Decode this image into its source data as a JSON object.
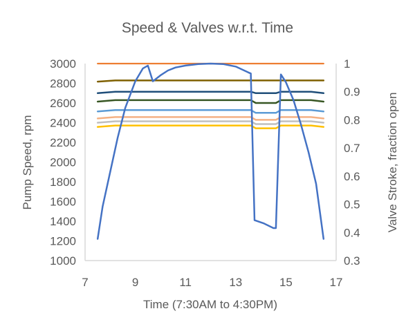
{
  "chart_data": {
    "type": "line",
    "title": "Speed & Valves w.r.t. Time",
    "xlabel": "Time (7:30AM to 4:30PM)",
    "ylabel": "Pump Speed, rpm",
    "y2label": "Valve Stroke, fraction open",
    "xlim": [
      7,
      17
    ],
    "ylim": [
      1000,
      3000
    ],
    "y2lim": [
      0.3,
      1
    ],
    "x_ticks": [
      "7",
      "9",
      "11",
      "13",
      "15",
      "17"
    ],
    "y_ticks": [
      "1000",
      "1200",
      "1400",
      "1600",
      "1800",
      "2000",
      "2200",
      "2400",
      "2600",
      "2800",
      "3000"
    ],
    "y2_ticks": [
      "0.3",
      "0.4",
      "0.5",
      "0.6",
      "0.7",
      "0.8",
      "0.9",
      "1"
    ],
    "grid": false,
    "legend": "none",
    "series": [
      {
        "axis": "left",
        "color": "#4472c4",
        "width": 2.5,
        "points": [
          [
            7.5,
            1220
          ],
          [
            7.7,
            1550
          ],
          [
            8.0,
            1900
          ],
          [
            8.3,
            2250
          ],
          [
            8.6,
            2550
          ],
          [
            9.0,
            2820
          ],
          [
            9.3,
            2950
          ],
          [
            9.5,
            2980
          ],
          [
            9.7,
            2820
          ],
          [
            10.0,
            2880
          ],
          [
            10.3,
            2930
          ],
          [
            10.6,
            2960
          ],
          [
            11.0,
            2980
          ],
          [
            11.5,
            2995
          ],
          [
            12.0,
            3000
          ],
          [
            12.5,
            2995
          ],
          [
            13.0,
            2970
          ],
          [
            13.5,
            2910
          ],
          [
            13.6,
            2900
          ],
          [
            13.75,
            1410
          ],
          [
            14.1,
            1380
          ],
          [
            14.5,
            1330
          ],
          [
            14.6,
            1330
          ],
          [
            14.8,
            2890
          ],
          [
            15.0,
            2810
          ],
          [
            15.3,
            2630
          ],
          [
            15.6,
            2380
          ],
          [
            15.9,
            2100
          ],
          [
            16.2,
            1780
          ],
          [
            16.5,
            1220
          ]
        ]
      },
      {
        "axis": "right",
        "color": "#ed7d31",
        "width": 2.2,
        "points": [
          [
            7.5,
            1.0
          ],
          [
            16.5,
            1.0
          ]
        ]
      },
      {
        "axis": "right",
        "color": "#7f6000",
        "width": 2.5,
        "points": [
          [
            7.5,
            0.936
          ],
          [
            8.2,
            0.94
          ],
          [
            13.6,
            0.94
          ],
          [
            16.5,
            0.94
          ]
        ]
      },
      {
        "axis": "right",
        "color": "#1f4e79",
        "width": 2.5,
        "points": [
          [
            7.5,
            0.895
          ],
          [
            8.2,
            0.9
          ],
          [
            13.6,
            0.9
          ],
          [
            13.8,
            0.895
          ],
          [
            14.6,
            0.895
          ],
          [
            14.8,
            0.9
          ],
          [
            16.0,
            0.9
          ],
          [
            16.5,
            0.895
          ]
        ]
      },
      {
        "axis": "right",
        "color": "#375623",
        "width": 2.5,
        "points": [
          [
            7.5,
            0.865
          ],
          [
            8.2,
            0.87
          ],
          [
            13.6,
            0.87
          ],
          [
            13.8,
            0.86
          ],
          [
            14.6,
            0.86
          ],
          [
            14.8,
            0.87
          ],
          [
            16.0,
            0.87
          ],
          [
            16.5,
            0.865
          ]
        ]
      },
      {
        "axis": "right",
        "color": "#5b9bd5",
        "width": 2.5,
        "points": [
          [
            7.5,
            0.83
          ],
          [
            8.2,
            0.835
          ],
          [
            13.6,
            0.835
          ],
          [
            13.8,
            0.825
          ],
          [
            14.6,
            0.825
          ],
          [
            14.8,
            0.835
          ],
          [
            16.0,
            0.835
          ],
          [
            16.5,
            0.83
          ]
        ]
      },
      {
        "axis": "right",
        "color": "#f4b183",
        "width": 2.5,
        "points": [
          [
            7.5,
            0.805
          ],
          [
            8.2,
            0.81
          ],
          [
            13.6,
            0.81
          ],
          [
            13.8,
            0.8
          ],
          [
            14.6,
            0.8
          ],
          [
            14.8,
            0.81
          ],
          [
            16.0,
            0.81
          ],
          [
            16.5,
            0.805
          ]
        ]
      },
      {
        "axis": "right",
        "color": "#bfbfbf",
        "width": 2.5,
        "points": [
          [
            7.5,
            0.79
          ],
          [
            8.2,
            0.795
          ],
          [
            13.6,
            0.795
          ],
          [
            13.8,
            0.785
          ],
          [
            14.6,
            0.785
          ],
          [
            14.8,
            0.795
          ],
          [
            16.0,
            0.795
          ],
          [
            16.5,
            0.79
          ]
        ]
      },
      {
        "axis": "right",
        "color": "#ffc000",
        "width": 2.5,
        "points": [
          [
            7.5,
            0.775
          ],
          [
            8.2,
            0.78
          ],
          [
            13.6,
            0.78
          ],
          [
            13.8,
            0.77
          ],
          [
            14.6,
            0.77
          ],
          [
            14.8,
            0.78
          ],
          [
            16.0,
            0.78
          ],
          [
            16.5,
            0.775
          ]
        ]
      }
    ]
  }
}
